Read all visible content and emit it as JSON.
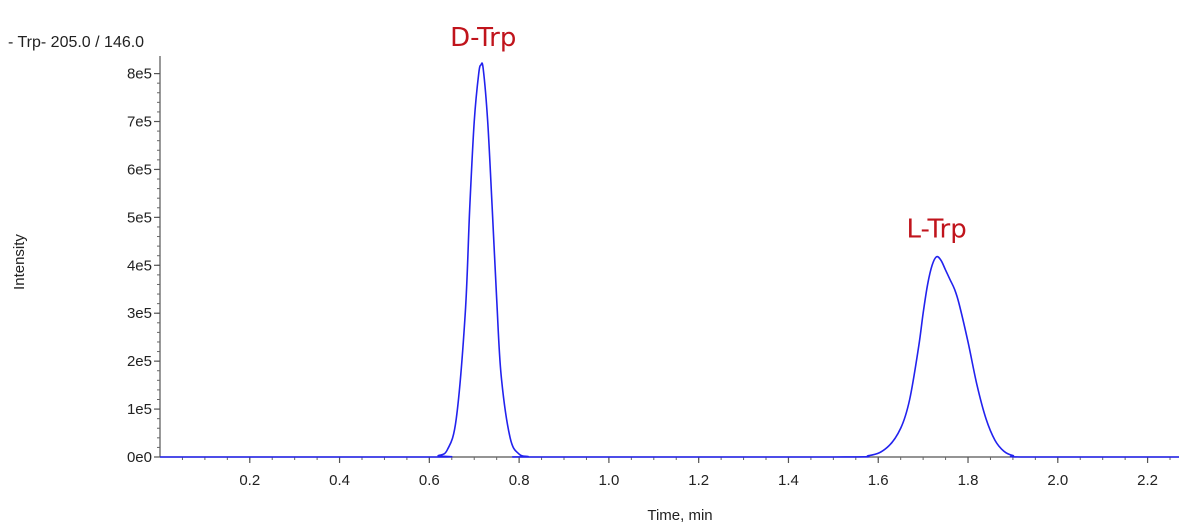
{
  "chart_data": {
    "type": "line",
    "trace_label": "- Trp- 205.0 / 146.0",
    "xlabel": "Time, min",
    "ylabel": "Intensity",
    "xlim": [
      0.0,
      2.27
    ],
    "ylim": [
      0,
      820000
    ],
    "x_ticks": [
      0.2,
      0.4,
      0.6,
      0.8,
      1.0,
      1.2,
      1.4,
      1.6,
      1.8,
      2.0,
      2.2
    ],
    "x_tick_labels": [
      "0.2",
      "0.4",
      "0.6",
      "0.8",
      "1.0",
      "1.2",
      "1.4",
      "1.6",
      "1.8",
      "2.0",
      "2.2"
    ],
    "y_ticks": [
      0,
      100000,
      200000,
      300000,
      400000,
      500000,
      600000,
      700000,
      800000
    ],
    "y_tick_labels": [
      "0e0",
      "1e5",
      "2e5",
      "3e5",
      "4e5",
      "5e5",
      "6e5",
      "7e5",
      "8e5"
    ],
    "series_color": "#2222ee",
    "annotation_color": "#c0141c",
    "annotations": [
      {
        "text": "D-Trp",
        "x": 0.72,
        "y": 820000
      },
      {
        "text": "L-Trp",
        "x": 1.73,
        "y": 420000
      }
    ],
    "series": [
      {
        "x": [
          0.0,
          0.6,
          0.62,
          0.64,
          0.66,
          0.68,
          0.69,
          0.7,
          0.71,
          0.715,
          0.72,
          0.73,
          0.74,
          0.75,
          0.76,
          0.78,
          0.8,
          0.82,
          0.84,
          1.5,
          1.58,
          1.62,
          1.65,
          1.67,
          1.69,
          1.7,
          1.71,
          1.72,
          1.73,
          1.74,
          1.75,
          1.76,
          1.77,
          1.78,
          1.8,
          1.82,
          1.84,
          1.86,
          1.88,
          1.9,
          1.93,
          2.27
        ],
        "y": [
          0,
          0,
          3000,
          15000,
          80000,
          300000,
          520000,
          700000,
          800000,
          818000,
          810000,
          700000,
          520000,
          330000,
          170000,
          40000,
          6000,
          1000,
          0,
          0,
          3000,
          20000,
          60000,
          120000,
          230000,
          300000,
          360000,
          400000,
          418000,
          410000,
          390000,
          370000,
          350000,
          320000,
          240000,
          150000,
          80000,
          35000,
          12000,
          3000,
          0,
          0
        ]
      }
    ]
  }
}
